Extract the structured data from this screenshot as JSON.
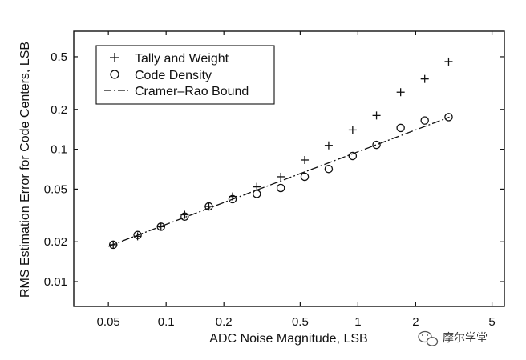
{
  "chart_data": {
    "type": "scatter",
    "title": "",
    "xlabel": "ADC Noise Magnitude, LSB",
    "ylabel": "RMS Estimation Error for Code Centers, LSB",
    "xscale": "log",
    "yscale": "log",
    "xlim": [
      0.033,
      5.8
    ],
    "ylim": [
      0.0065,
      0.78
    ],
    "grid": false,
    "legend_position": "top-left",
    "xticks": [
      0.05,
      0.1,
      0.2,
      0.5,
      1,
      2,
      5
    ],
    "xtick_labels": [
      "0.05",
      "0.1",
      "0.2",
      "0.5",
      "1",
      "2",
      "5"
    ],
    "yticks": [
      0.01,
      0.02,
      0.05,
      0.1,
      0.2,
      0.5
    ],
    "ytick_labels": [
      "0.01",
      "0.02",
      "0.05",
      "0.1",
      "0.2",
      "0.5"
    ],
    "series": [
      {
        "name": "Tally and Weight",
        "marker": "plus",
        "x": [
          0.053,
          0.071,
          0.094,
          0.125,
          0.167,
          0.222,
          0.297,
          0.396,
          0.528,
          0.704,
          0.939,
          1.25,
          1.67,
          2.23,
          2.97
        ],
        "y": [
          0.019,
          0.022,
          0.026,
          0.032,
          0.037,
          0.044,
          0.052,
          0.062,
          0.083,
          0.107,
          0.14,
          0.18,
          0.27,
          0.34,
          0.46
        ]
      },
      {
        "name": "Code Density",
        "marker": "circle",
        "x": [
          0.053,
          0.071,
          0.094,
          0.125,
          0.167,
          0.222,
          0.297,
          0.396,
          0.528,
          0.704,
          0.939,
          1.25,
          1.67,
          2.23,
          2.97
        ],
        "y": [
          0.019,
          0.0225,
          0.026,
          0.031,
          0.037,
          0.042,
          0.046,
          0.051,
          0.062,
          0.071,
          0.089,
          0.108,
          0.145,
          0.165,
          0.175
        ]
      },
      {
        "name": "Cramer-Rao Bound",
        "marker": "none",
        "line": "dash-dot",
        "x": [
          0.05,
          3.0
        ],
        "y": [
          0.0185,
          0.175
        ]
      }
    ]
  },
  "legend": {
    "items": [
      {
        "label": "Tally and Weight",
        "marker": "+"
      },
      {
        "label": "Code Density",
        "marker": "o"
      },
      {
        "label": "Cramer–Rao Bound",
        "marker": "-·"
      }
    ]
  },
  "watermark": {
    "text": "摩尔学堂",
    "icon": "wechat-icon"
  }
}
